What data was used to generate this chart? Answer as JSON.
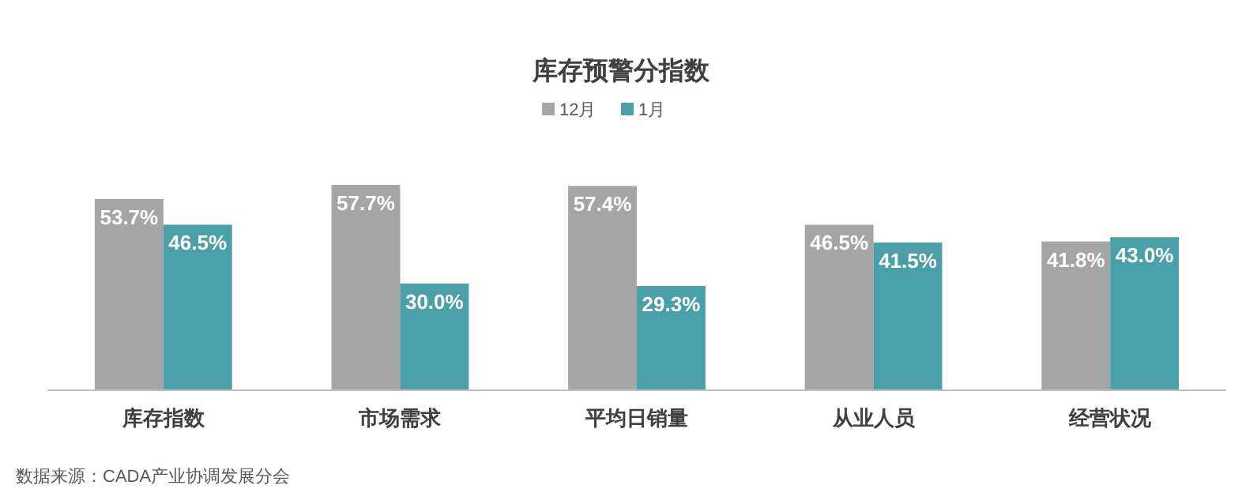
{
  "chart_data": {
    "type": "bar",
    "title": "库存预警分指数",
    "categories": [
      "库存指数",
      "市场需求",
      "平均日销量",
      "从业人员",
      "经营状况"
    ],
    "series": [
      {
        "name": "12月",
        "color": "#a5a5a5",
        "values": [
          53.7,
          57.7,
          57.4,
          46.5,
          41.8
        ],
        "value_labels": [
          "53.7%",
          "57.7%",
          "57.4%",
          "46.5%",
          "41.8%"
        ]
      },
      {
        "name": "1月",
        "color": "#4b9fa8",
        "values": [
          46.5,
          30.0,
          29.3,
          41.5,
          43.0
        ],
        "value_labels": [
          "46.5%",
          "30.0%",
          "29.3%",
          "41.5%",
          "43.0%"
        ]
      }
    ],
    "legend": "top",
    "grid": false,
    "annotations": [
      "数据来源：CADA产业协调发展分会"
    ]
  }
}
